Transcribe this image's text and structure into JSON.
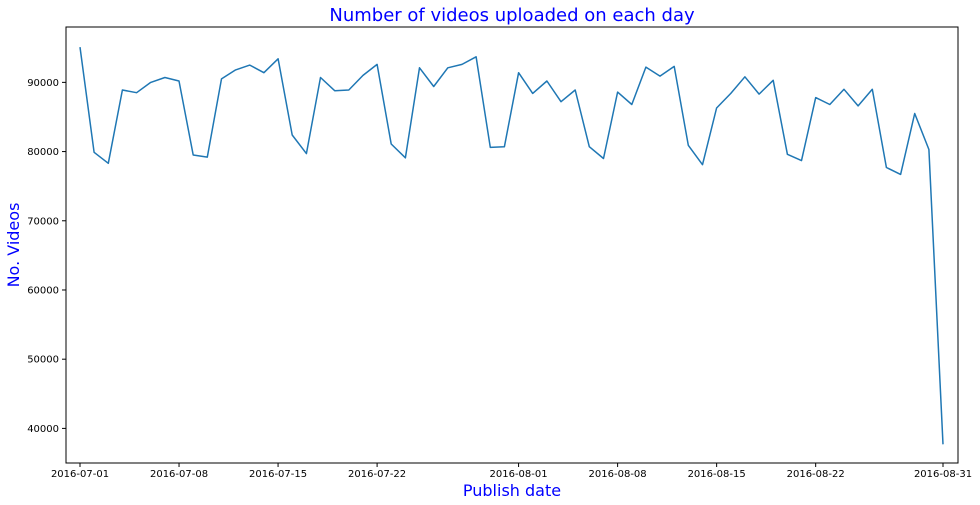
{
  "chart_data": {
    "type": "line",
    "title": "Number of videos uploaded on each day",
    "xlabel": "Publish date",
    "ylabel": "No. Videos",
    "grid": false,
    "legend": "none",
    "ylim": [
      35000,
      98000
    ],
    "x_tick_labels": [
      "2016-07-01",
      "2016-07-08",
      "2016-07-15",
      "2016-07-22",
      "2016-08-01",
      "2016-08-08",
      "2016-08-15",
      "2016-08-22",
      "2016-08-31"
    ],
    "y_tick_labels": [
      "40000",
      "50000",
      "60000",
      "70000",
      "80000",
      "90000"
    ],
    "y_ticks": [
      40000,
      50000,
      60000,
      70000,
      80000,
      90000
    ],
    "series": [
      {
        "color": "#1f77b4",
        "x": [
          "2016-07-01",
          "2016-07-02",
          "2016-07-03",
          "2016-07-04",
          "2016-07-05",
          "2016-07-06",
          "2016-07-07",
          "2016-07-08",
          "2016-07-09",
          "2016-07-10",
          "2016-07-11",
          "2016-07-12",
          "2016-07-13",
          "2016-07-14",
          "2016-07-15",
          "2016-07-16",
          "2016-07-17",
          "2016-07-18",
          "2016-07-19",
          "2016-07-20",
          "2016-07-21",
          "2016-07-22",
          "2016-07-23",
          "2016-07-24",
          "2016-07-25",
          "2016-07-26",
          "2016-07-27",
          "2016-07-28",
          "2016-07-29",
          "2016-07-30",
          "2016-07-31",
          "2016-08-01",
          "2016-08-02",
          "2016-08-03",
          "2016-08-04",
          "2016-08-05",
          "2016-08-06",
          "2016-08-07",
          "2016-08-08",
          "2016-08-09",
          "2016-08-10",
          "2016-08-11",
          "2016-08-12",
          "2016-08-13",
          "2016-08-14",
          "2016-08-15",
          "2016-08-16",
          "2016-08-17",
          "2016-08-18",
          "2016-08-19",
          "2016-08-20",
          "2016-08-21",
          "2016-08-22",
          "2016-08-23",
          "2016-08-24",
          "2016-08-25",
          "2016-08-26",
          "2016-08-27",
          "2016-08-28",
          "2016-08-29",
          "2016-08-30",
          "2016-08-31"
        ],
        "values": [
          95100,
          79900,
          78300,
          88900,
          88500,
          90000,
          90700,
          90200,
          79500,
          79200,
          90500,
          91800,
          92500,
          91400,
          93400,
          82400,
          79700,
          90700,
          88800,
          88900,
          91000,
          92600,
          81100,
          79100,
          92100,
          89400,
          92100,
          92600,
          93700,
          80600,
          80700,
          91400,
          88400,
          90200,
          87200,
          88900,
          80700,
          79000,
          88600,
          86800,
          92200,
          90900,
          92300,
          80900,
          78100,
          86300,
          88400,
          90800,
          88300,
          90300,
          79600,
          78700,
          87800,
          86800,
          89000,
          86600,
          89000,
          77700,
          76700,
          85500,
          80300,
          37700
        ]
      }
    ]
  }
}
